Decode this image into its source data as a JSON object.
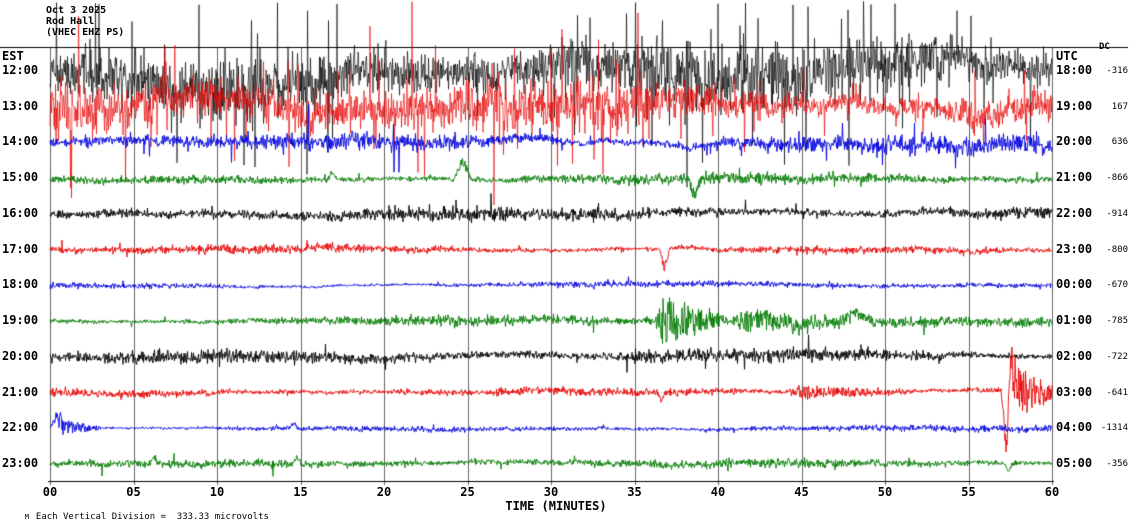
{
  "header": {
    "date": "Oct 3 2025",
    "station": "Rod Hall",
    "channel": "(VHEC EHZ PS)"
  },
  "footer": {
    "logo": "M",
    "note": "Each Vertical Division =  333.33 microvolts"
  },
  "chart_data": {
    "type": "line",
    "title": "Helicorder webicorder display, 12 hourly seismogram traces",
    "x_title": "TIME (MINUTES)",
    "x_range": [
      0,
      60
    ],
    "x_tick_labels": [
      "00",
      "05",
      "10",
      "15",
      "20",
      "25",
      "30",
      "35",
      "40",
      "45",
      "50",
      "55",
      "60"
    ],
    "y_axis_left": "EST",
    "y_axis_right": "UTC",
    "dc_label": "DC",
    "vertical_division_microvolts": 333.33,
    "grid": true,
    "trace_colors": {
      "black": "#000000",
      "red": "#e60000",
      "blue": "#0000dd",
      "green": "#007a00"
    },
    "rows": [
      {
        "est": "12:00",
        "utc": "18:00",
        "dc": -316,
        "color": "black",
        "amp": 30,
        "spike_prob": 0.1,
        "spike_mult": 2.8,
        "events": []
      },
      {
        "est": "13:00",
        "utc": "19:00",
        "dc": 167,
        "color": "red",
        "amp": 28,
        "spike_prob": 0.1,
        "spike_mult": 2.7,
        "events": []
      },
      {
        "est": "14:00",
        "utc": "20:00",
        "dc": 636,
        "color": "blue",
        "amp": 11,
        "spike_prob": 0.06,
        "spike_mult": 2.4,
        "events": []
      },
      {
        "est": "15:00",
        "utc": "21:00",
        "dc": -866,
        "color": "green",
        "amp": 5.5,
        "spike_prob": 0.02,
        "spike_mult": 2.0,
        "events": [
          {
            "type": "spike",
            "t": 24.7,
            "amp": 26,
            "dur": 0.5,
            "dir": 1
          },
          {
            "type": "spike",
            "t": 16.9,
            "amp": 10,
            "dur": 0.3,
            "dir": 1
          },
          {
            "type": "spike",
            "t": 38.6,
            "amp": 24,
            "dur": 0.35,
            "dir": -1
          }
        ]
      },
      {
        "est": "16:00",
        "utc": "22:00",
        "dc": -914,
        "color": "black",
        "amp": 6.5,
        "spike_prob": 0.03,
        "spike_mult": 2.0,
        "events": []
      },
      {
        "est": "17:00",
        "utc": "23:00",
        "dc": -800,
        "color": "red",
        "amp": 5,
        "spike_prob": 0.02,
        "spike_mult": 2.0,
        "events": [
          {
            "type": "spike",
            "t": 36.8,
            "amp": 26,
            "dur": 0.3,
            "dir": -1
          }
        ]
      },
      {
        "est": "18:00",
        "utc": "00:00",
        "dc": -670,
        "color": "blue",
        "amp": 4,
        "spike_prob": 0.02,
        "spike_mult": 1.8,
        "events": []
      },
      {
        "est": "19:00",
        "utc": "01:00",
        "dc": -785,
        "color": "green",
        "amp": 5,
        "spike_prob": 0.02,
        "spike_mult": 1.8,
        "events": [
          {
            "type": "burst",
            "t0": 36.2,
            "t1": 40.5,
            "peak": 24
          },
          {
            "type": "burst",
            "t0": 40.5,
            "t1": 50,
            "peak": 11
          },
          {
            "type": "spike",
            "t": 48.3,
            "amp": 14,
            "dur": 1.0,
            "dir": 1
          },
          {
            "type": "spike",
            "t": 44.8,
            "amp": 12,
            "dur": 0.8,
            "dir": -1
          }
        ]
      },
      {
        "est": "20:00",
        "utc": "02:00",
        "dc": -722,
        "color": "black",
        "amp": 6.5,
        "spike_prob": 0.03,
        "spike_mult": 1.9,
        "events": [
          {
            "type": "burst",
            "t0": 33,
            "t1": 50,
            "peak": 5
          }
        ]
      },
      {
        "est": "21:00",
        "utc": "03:00",
        "dc": -641,
        "color": "red",
        "amp": 5.5,
        "spike_prob": 0.02,
        "spike_mult": 1.9,
        "events": [
          {
            "type": "spike",
            "t": 57.25,
            "amp": 70,
            "dur": 0.3,
            "dir": -1
          },
          {
            "type": "spike",
            "t": 57.6,
            "amp": 45,
            "dur": 0.35,
            "dir": 1
          },
          {
            "type": "burst",
            "t0": 57.4,
            "t1": 60,
            "peak": 30
          },
          {
            "type": "burst",
            "t0": 44,
            "t1": 52,
            "peak": 7
          },
          {
            "type": "spike",
            "t": 36.6,
            "amp": 12,
            "dur": 0.2,
            "dir": -1
          }
        ]
      },
      {
        "est": "22:00",
        "utc": "04:00",
        "dc": -1314,
        "color": "blue",
        "amp": 3.5,
        "spike_prob": 0.015,
        "spike_mult": 1.8,
        "events": [
          {
            "type": "spike",
            "t": 0.4,
            "amp": 16,
            "dur": 0.4,
            "dir": 1
          },
          {
            "type": "burst",
            "t0": 0.3,
            "t1": 3,
            "peak": 9
          },
          {
            "type": "spike",
            "t": 14.6,
            "amp": 7,
            "dur": 0.3,
            "dir": 1
          }
        ]
      },
      {
        "est": "23:00",
        "utc": "05:00",
        "dc": -356,
        "color": "green",
        "amp": 4.5,
        "spike_prob": 0.02,
        "spike_mult": 1.8,
        "events": [
          {
            "type": "spike",
            "t": 6.2,
            "amp": 9,
            "dur": 0.3,
            "dir": 1
          },
          {
            "type": "spike",
            "t": 14.8,
            "amp": 10,
            "dur": 0.3,
            "dir": 1
          },
          {
            "type": "spike",
            "t": 57.4,
            "amp": 10,
            "dur": 0.3,
            "dir": -1
          }
        ]
      }
    ]
  }
}
